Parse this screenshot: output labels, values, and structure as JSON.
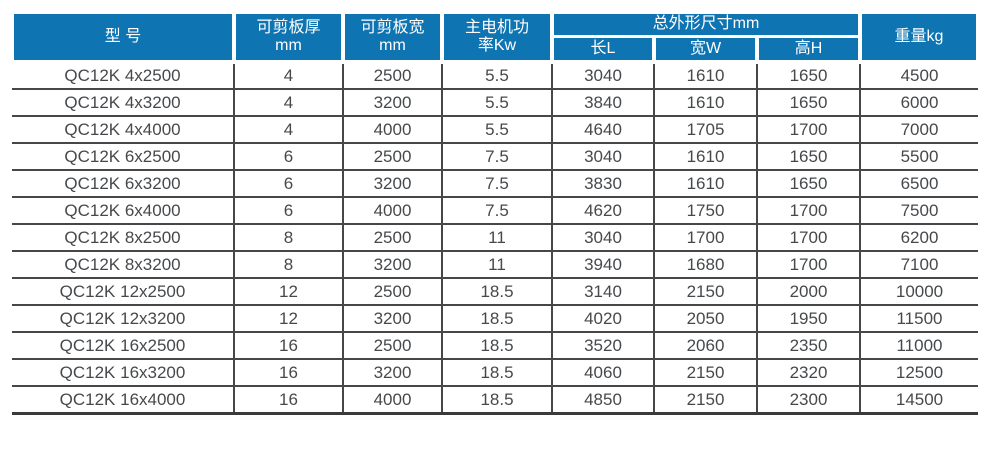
{
  "colors": {
    "header_bg": "#0e74b2",
    "header_text": "#ffffff",
    "body_text": "#46494c",
    "grid_line": "#474747"
  },
  "table": {
    "headers": {
      "model": "型 号",
      "thickness": "可剪板厚\nmm",
      "cut_width": "可剪板宽\nmm",
      "power": "主电机功\n率Kw",
      "dimensions_group": "总外形尺寸mm",
      "length": "长L",
      "width": "宽W",
      "height": "高H",
      "weight": "重量kg"
    },
    "rows": [
      [
        "QC12K 4x2500",
        "4",
        "2500",
        "5.5",
        "3040",
        "1610",
        "1650",
        "4500"
      ],
      [
        "QC12K 4x3200",
        "4",
        "3200",
        "5.5",
        "3840",
        "1610",
        "1650",
        "6000"
      ],
      [
        "QC12K 4x4000",
        "4",
        "4000",
        "5.5",
        "4640",
        "1705",
        "1700",
        "7000"
      ],
      [
        "QC12K 6x2500",
        "6",
        "2500",
        "7.5",
        "3040",
        "1610",
        "1650",
        "5500"
      ],
      [
        "QC12K 6x3200",
        "6",
        "3200",
        "7.5",
        "3830",
        "1610",
        "1650",
        "6500"
      ],
      [
        "QC12K 6x4000",
        "6",
        "4000",
        "7.5",
        "4620",
        "1750",
        "1700",
        "7500"
      ],
      [
        "QC12K 8x2500",
        "8",
        "2500",
        "11",
        "3040",
        "1700",
        "1700",
        "6200"
      ],
      [
        "QC12K 8x3200",
        "8",
        "3200",
        "11",
        "3940",
        "1680",
        "1700",
        "7100"
      ],
      [
        "QC12K 12x2500",
        "12",
        "2500",
        "18.5",
        "3140",
        "2150",
        "2000",
        "10000"
      ],
      [
        "QC12K 12x3200",
        "12",
        "3200",
        "18.5",
        "4020",
        "2050",
        "1950",
        "11500"
      ],
      [
        "QC12K 16x2500",
        "16",
        "2500",
        "18.5",
        "3520",
        "2060",
        "2350",
        "11000"
      ],
      [
        "QC12K 16x3200",
        "16",
        "3200",
        "18.5",
        "4060",
        "2150",
        "2320",
        "12500"
      ],
      [
        "QC12K 16x4000",
        "16",
        "4000",
        "18.5",
        "4850",
        "2150",
        "2300",
        "14500"
      ]
    ]
  }
}
